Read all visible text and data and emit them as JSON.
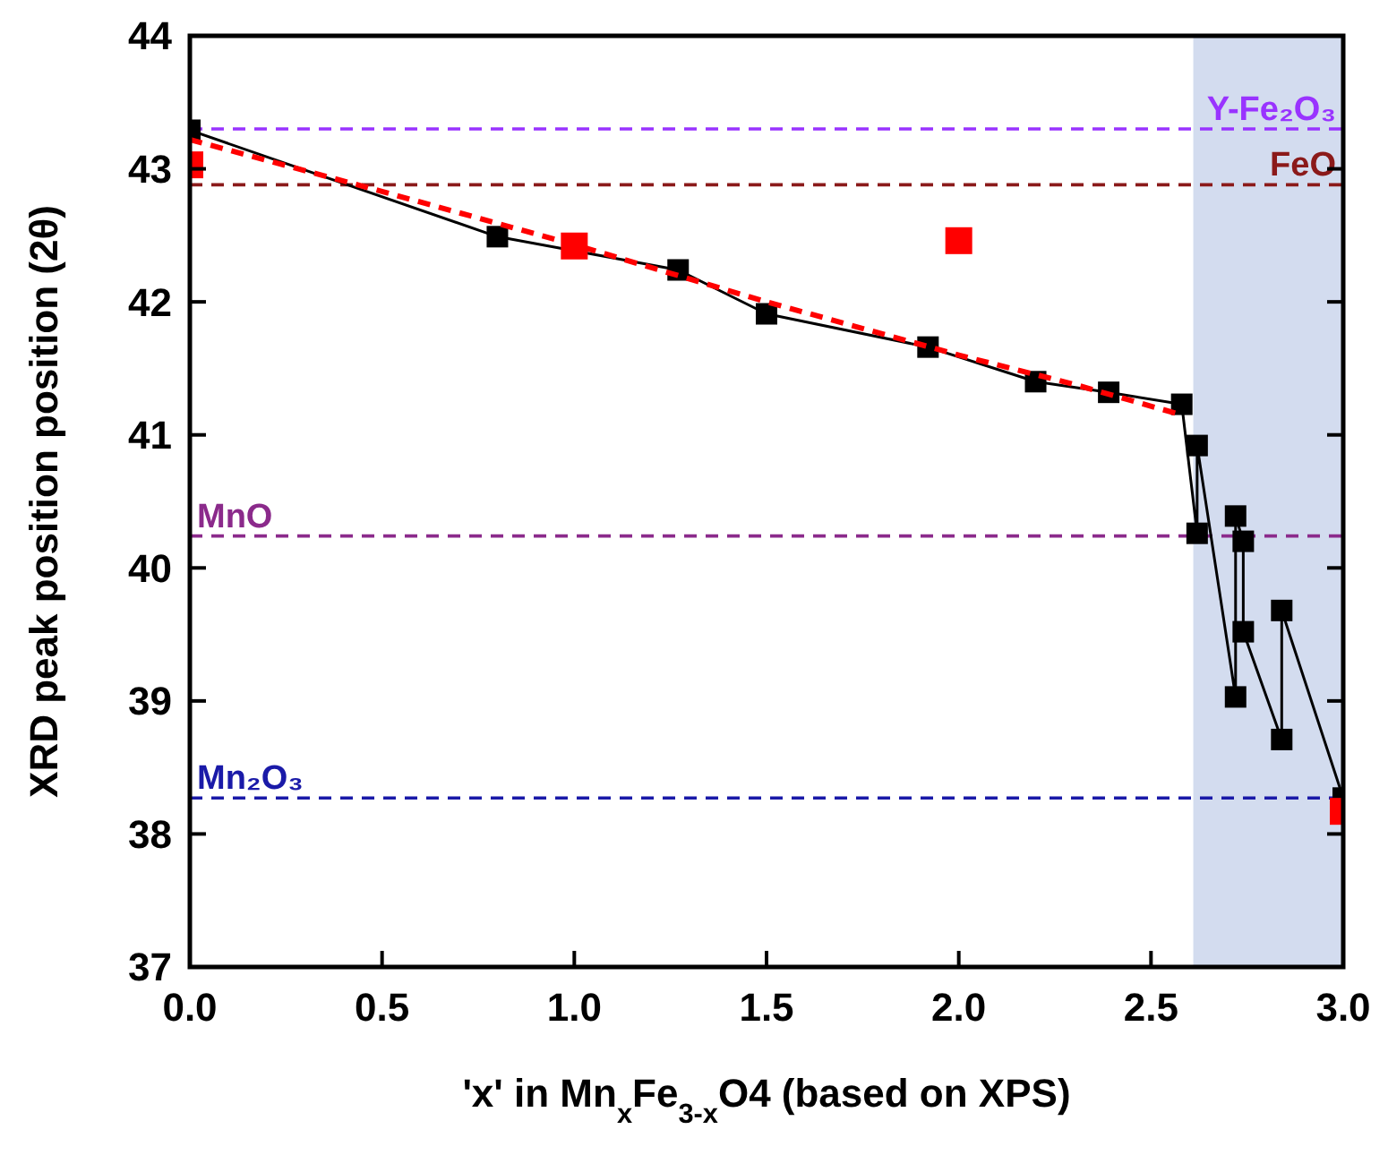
{
  "chart_data": {
    "type": "line",
    "xlabel": "'x' in Mn$_{x}$Fe$_{3-x}$O4 (based on XPS)",
    "ylabel": "XRD peak position position (2θ)",
    "xlim": [
      0,
      3.0
    ],
    "xticks": [
      {
        "value": 0,
        "label": "0.0"
      },
      {
        "value": 0.5,
        "label": "0.5"
      },
      {
        "value": 1,
        "label": "1.0"
      },
      {
        "value": 1.5,
        "label": "1.5"
      },
      {
        "value": 2,
        "label": "2.0"
      },
      {
        "value": 2.5,
        "label": "2.5"
      },
      {
        "value": 3,
        "label": "3.0"
      }
    ],
    "ylim": [
      37,
      44
    ],
    "yticks": [
      37,
      38,
      39,
      40,
      41,
      42,
      43,
      44
    ],
    "grid": false,
    "series": [
      {
        "color": "#000000",
        "marker": "square",
        "line_style": "solid",
        "x": [
          0,
          0.8,
          1.27,
          1.5,
          1.92,
          2.2,
          2.39,
          2.58,
          2.62,
          2.62,
          2.72,
          2.72,
          2.74,
          2.74,
          2.84,
          2.84,
          3.0
        ],
        "values": [
          43.29,
          42.49,
          42.24,
          41.91,
          41.66,
          41.4,
          41.32,
          41.23,
          40.26,
          40.92,
          39.03,
          40.39,
          40.2,
          39.52,
          38.71,
          39.68,
          38.27
        ]
      },
      {
        "color": "#ff0000",
        "marker": "none",
        "line_style": "dashed",
        "x": [
          0,
          0.5,
          1.0,
          1.5,
          2.0,
          2.3,
          2.58
        ],
        "values": [
          43.22,
          42.83,
          42.43,
          42.0,
          41.6,
          41.38,
          41.15
        ]
      },
      {
        "type": "scatter",
        "color": "#ff0000",
        "marker": "square",
        "x": [
          0,
          1.0,
          2.0,
          3.0
        ],
        "values": [
          43.03,
          42.42,
          42.46,
          38.17
        ]
      }
    ],
    "ref_lines": [
      {
        "axis": "y",
        "value": 43.3,
        "label": "Y-Fe₂O₃",
        "color": "#9933ff",
        "line_style": "dashed"
      },
      {
        "axis": "y",
        "value": 42.88,
        "label": "FeO",
        "color": "#8b1a1a",
        "line_style": "dashed"
      },
      {
        "axis": "y",
        "value": 40.24,
        "label": "MnO",
        "color": "#8b2a8b",
        "line_style": "dashed"
      },
      {
        "axis": "y",
        "value": 38.27,
        "label": "Mn₂O₃",
        "color": "#1a1aa8",
        "line_style": "dashed"
      }
    ],
    "bands": [
      {
        "axis": "x",
        "from": 2.61,
        "to": 3.0,
        "color": "#d3dcef"
      }
    ]
  }
}
